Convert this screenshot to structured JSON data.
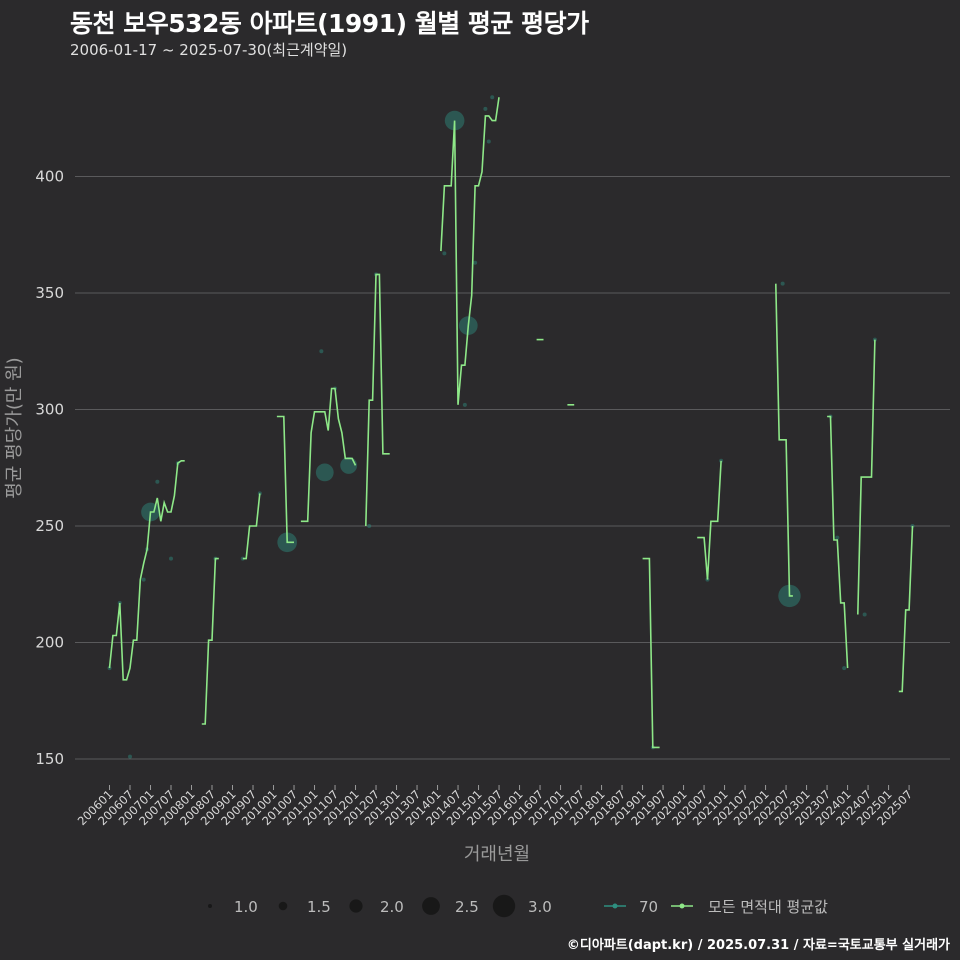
{
  "header": {
    "title": "동천 보우532동 아파트(1991) 월별 평균 평당가",
    "subtitle": "2006-01-17 ~ 2025-07-30(최근계약일)"
  },
  "caption": "©디아파트(dapt.kr) / 2025.07.31 / 자료=국토교통부 실거래가",
  "colors": {
    "background": "#2b2a2c",
    "grid": "#5a5a5c",
    "line": "#8ee888",
    "point": "#2e8f80"
  },
  "chart_data": {
    "type": "line",
    "xlabel": "거래년월",
    "ylabel": "평균 평당가(만 원)",
    "ylim": [
      137,
      440
    ],
    "yticks": [
      150,
      200,
      250,
      300,
      350,
      400
    ],
    "start_year": 2006,
    "start_month": 1,
    "end_year": 2025,
    "end_month": 12,
    "x_tick_labels": [
      "200601",
      "200607",
      "200701",
      "200707",
      "200801",
      "200807",
      "200901",
      "200907",
      "201001",
      "201007",
      "201101",
      "201107",
      "201201",
      "201207",
      "201301",
      "201307",
      "201401",
      "201407",
      "201501",
      "201507",
      "201601",
      "201607",
      "201701",
      "201707",
      "201801",
      "201807",
      "201901",
      "201907",
      "202001",
      "202007",
      "202101",
      "202107",
      "202201",
      "202207",
      "202301",
      "202307",
      "202401",
      "202407",
      "202501",
      "202507"
    ],
    "legend": {
      "size_title": "",
      "size_values": [
        "1.0",
        "1.5",
        "2.0",
        "2.5",
        "3.0"
      ],
      "series_labels": [
        "70",
        "모든 면적대 평균값"
      ]
    },
    "series": [
      {
        "name": "모든 면적대 평균값",
        "segments": [
          [
            [
              "200601",
              189
            ],
            [
              "200602",
              203
            ],
            [
              "200603",
              203
            ],
            [
              "200604",
              217
            ],
            [
              "200605",
              184
            ],
            [
              "200606",
              184
            ],
            [
              "200607",
              189
            ],
            [
              "200608",
              201
            ],
            [
              "200609",
              201
            ],
            [
              "200610",
              227
            ],
            [
              "200611",
              234
            ],
            [
              "200612",
              240
            ],
            [
              "200701",
              256
            ],
            [
              "200702",
              256
            ],
            [
              "200703",
              262
            ],
            [
              "200704",
              252
            ],
            [
              "200705",
              260
            ],
            [
              "200706",
              256
            ],
            [
              "200707",
              256
            ],
            [
              "200708",
              263
            ],
            [
              "200709",
              277
            ],
            [
              "200710",
              278
            ],
            [
              "200711",
              278
            ]
          ],
          [
            [
              "200804",
              165
            ],
            [
              "200805",
              165
            ],
            [
              "200806",
              201
            ],
            [
              "200807",
              201
            ],
            [
              "200808",
              236
            ],
            [
              "200809",
              236
            ]
          ],
          [
            [
              "200904",
              236
            ],
            [
              "200905",
              236
            ],
            [
              "200906",
              250
            ],
            [
              "200907",
              250
            ],
            [
              "200908",
              250
            ],
            [
              "200909",
              264
            ]
          ],
          [
            [
              "201002",
              297
            ],
            [
              "201003",
              297
            ],
            [
              "201004",
              297
            ],
            [
              "201005",
              243
            ],
            [
              "201006",
              243
            ],
            [
              "201007",
              243
            ]
          ],
          [
            [
              "201009",
              252
            ],
            [
              "201010",
              252
            ],
            [
              "201011",
              252
            ],
            [
              "201012",
              290
            ],
            [
              "201101",
              299
            ],
            [
              "201102",
              299
            ],
            [
              "201103",
              299
            ],
            [
              "201104",
              299
            ],
            [
              "201105",
              291
            ],
            [
              "201106",
              309
            ],
            [
              "201107",
              309
            ],
            [
              "201108",
              296
            ],
            [
              "201109",
              290
            ],
            [
              "201110",
              279
            ],
            [
              "201111",
              279
            ],
            [
              "201112",
              279
            ],
            [
              "201201",
              276
            ]
          ],
          [
            [
              "201204",
              250
            ],
            [
              "201205",
              304
            ],
            [
              "201206",
              304
            ],
            [
              "201207",
              358
            ],
            [
              "201208",
              358
            ],
            [
              "201209",
              281
            ],
            [
              "201210",
              281
            ],
            [
              "201211",
              281
            ]
          ],
          [
            [
              "201402",
              368
            ],
            [
              "201403",
              396
            ],
            [
              "201404",
              396
            ],
            [
              "201405",
              396
            ],
            [
              "201406",
              424
            ],
            [
              "201407",
              302
            ],
            [
              "201408",
              319
            ],
            [
              "201409",
              319
            ],
            [
              "201410",
              336
            ],
            [
              "201411",
              349
            ],
            [
              "201412",
              396
            ],
            [
              "201501",
              396
            ],
            [
              "201502",
              402
            ],
            [
              "201503",
              426
            ],
            [
              "201504",
              426
            ],
            [
              "201505",
              424
            ],
            [
              "201506",
              424
            ],
            [
              "201507",
              434
            ]
          ],
          [
            [
              "201606",
              330
            ],
            [
              "201607",
              330
            ],
            [
              "201608",
              330
            ]
          ],
          [
            [
              "201703",
              302
            ],
            [
              "201704",
              302
            ],
            [
              "201705",
              302
            ]
          ],
          [
            [
              "201901",
              236
            ],
            [
              "201902",
              236
            ],
            [
              "201903",
              236
            ],
            [
              "201904",
              155
            ],
            [
              "201905",
              155
            ],
            [
              "201906",
              155
            ]
          ],
          [
            [
              "202005",
              245
            ],
            [
              "202006",
              245
            ],
            [
              "202007",
              245
            ],
            [
              "202008",
              227
            ],
            [
              "202009",
              252
            ],
            [
              "202010",
              252
            ],
            [
              "202011",
              252
            ],
            [
              "202012",
              278
            ]
          ],
          [
            [
              "202204",
              354
            ],
            [
              "202205",
              287
            ],
            [
              "202206",
              287
            ],
            [
              "202207",
              287
            ],
            [
              "202208",
              220
            ],
            [
              "202209",
              220
            ]
          ],
          [
            [
              "202307",
              297
            ],
            [
              "202308",
              297
            ],
            [
              "202309",
              244
            ],
            [
              "202310",
              244
            ],
            [
              "202311",
              217
            ],
            [
              "202312",
              217
            ],
            [
              "202401",
              189
            ]
          ],
          [
            [
              "202404",
              212
            ],
            [
              "202405",
              271
            ],
            [
              "202406",
              271
            ],
            [
              "202407",
              271
            ],
            [
              "202408",
              271
            ],
            [
              "202409",
              330
            ]
          ],
          [
            [
              "202504",
              179
            ],
            [
              "202505",
              179
            ],
            [
              "202506",
              214
            ],
            [
              "202507",
              214
            ],
            [
              "202508",
              250
            ]
          ]
        ]
      },
      {
        "name": "70",
        "points": [
          [
            "200601",
            189,
            1
          ],
          [
            "200604",
            217,
            1
          ],
          [
            "200607",
            151,
            1
          ],
          [
            "200611",
            227,
            1
          ],
          [
            "200612",
            240,
            1
          ],
          [
            "200701",
            256,
            2.6
          ],
          [
            "200703",
            269,
            1
          ],
          [
            "200707",
            236,
            1
          ],
          [
            "200709",
            277,
            1
          ],
          [
            "200808",
            236,
            1
          ],
          [
            "200904",
            236,
            1
          ],
          [
            "200909",
            264,
            1
          ],
          [
            "201005",
            243,
            2.7
          ],
          [
            "201103",
            325,
            1
          ],
          [
            "201104",
            273,
            2.5
          ],
          [
            "201107",
            309,
            1
          ],
          [
            "201111",
            276,
            2.4
          ],
          [
            "201205",
            250,
            1
          ],
          [
            "201207",
            358,
            1
          ],
          [
            "201403",
            367,
            1
          ],
          [
            "201406",
            424,
            2.7
          ],
          [
            "201409",
            302,
            1
          ],
          [
            "201410",
            336,
            2.6
          ],
          [
            "201412",
            363,
            1
          ],
          [
            "201503",
            429,
            1
          ],
          [
            "201504",
            415,
            1
          ],
          [
            "201505",
            434,
            1
          ],
          [
            "201904",
            155,
            1
          ],
          [
            "202008",
            227,
            1
          ],
          [
            "202012",
            278,
            1
          ],
          [
            "202206",
            354,
            1
          ],
          [
            "202208",
            220,
            3.0
          ],
          [
            "202308",
            297,
            1
          ],
          [
            "202310",
            245,
            1
          ],
          [
            "202312",
            189,
            1
          ],
          [
            "202406",
            212,
            1
          ],
          [
            "202409",
            330,
            1
          ],
          [
            "202508",
            250,
            1
          ]
        ]
      }
    ]
  }
}
